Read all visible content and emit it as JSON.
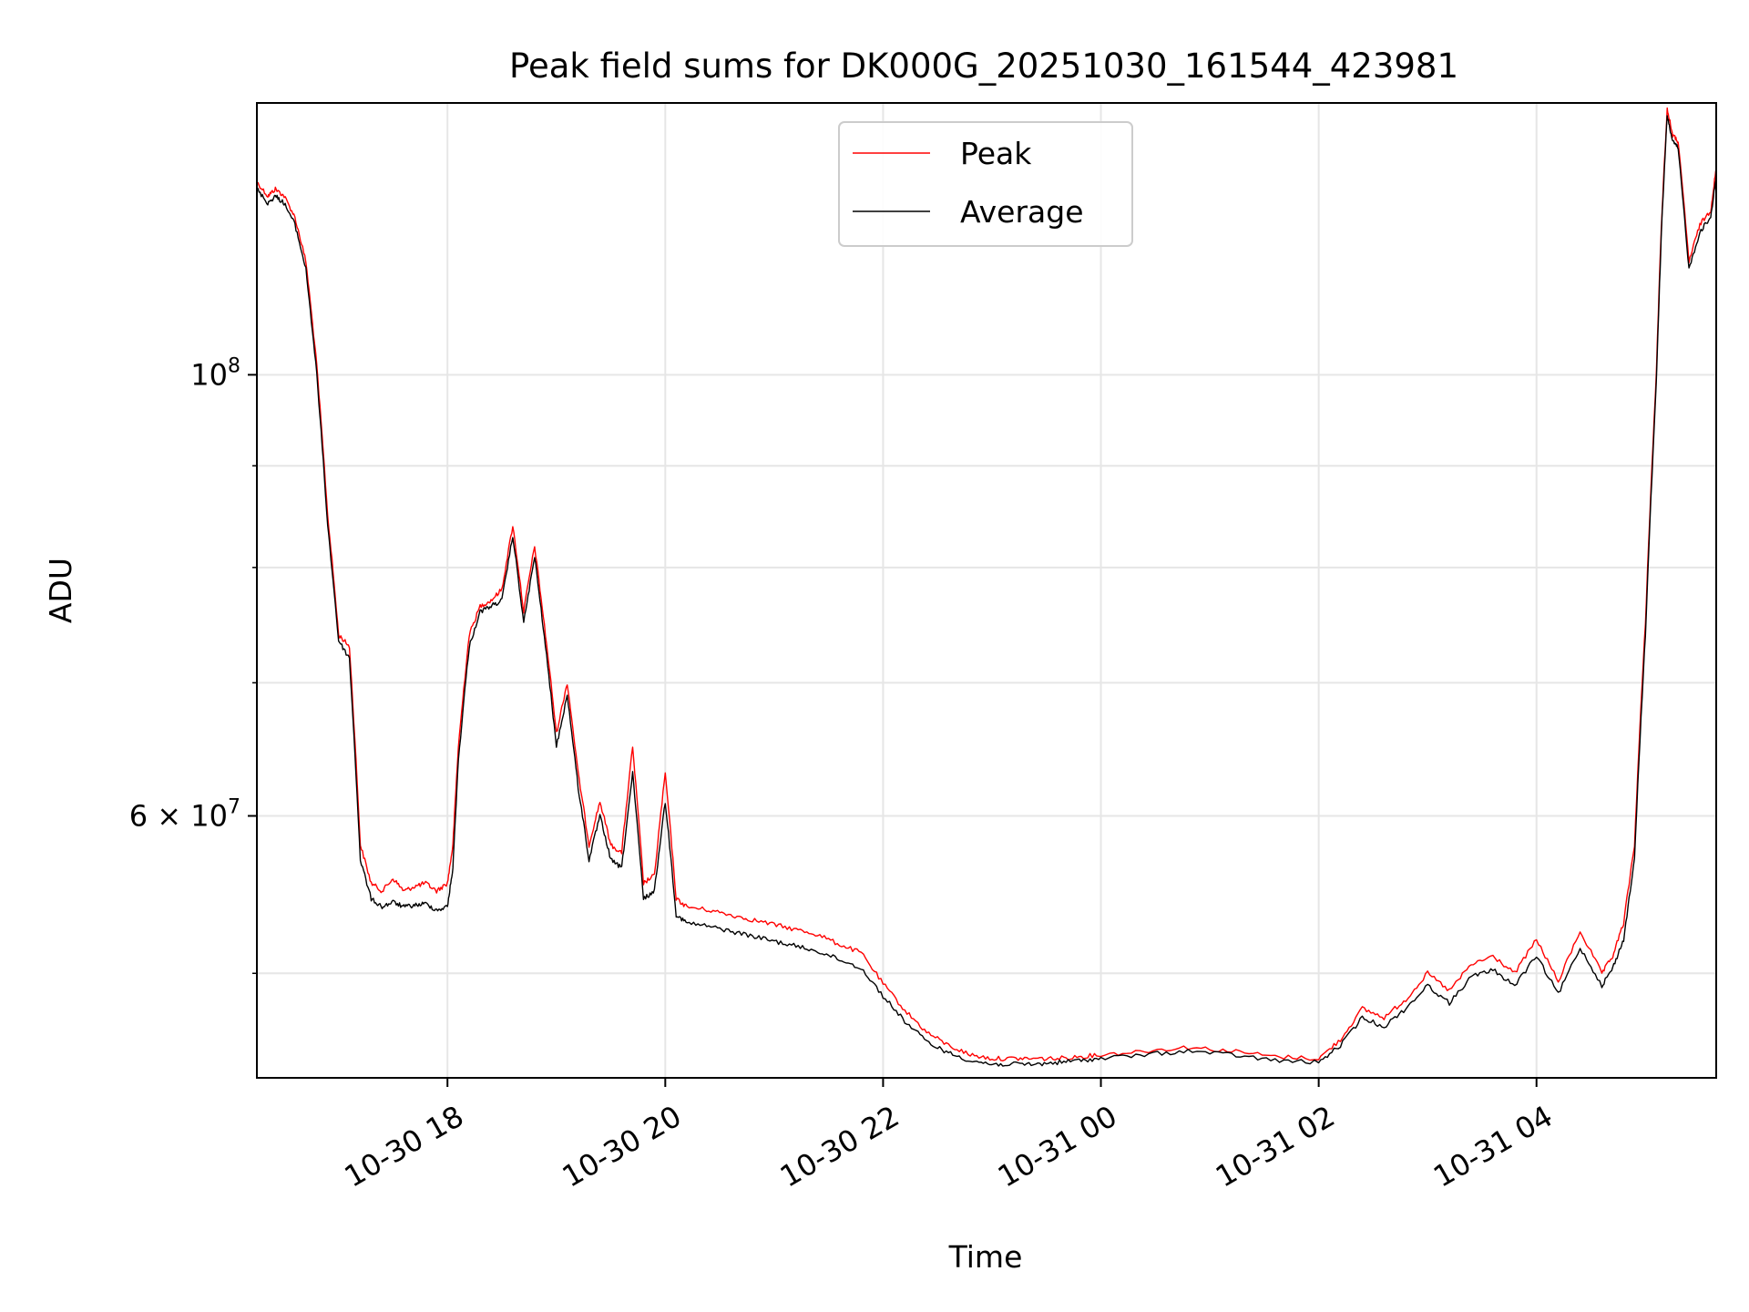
{
  "chart_data": {
    "type": "line",
    "title": "Peak field sums for DK000G_20251030_161544_423981",
    "xlabel": "Time",
    "ylabel": "ADU",
    "yscale": "log",
    "grid": true,
    "legend_position": "top-center",
    "x_unit": "hours since 2025-10-30 00:00",
    "xlim": [
      16.25,
      29.65
    ],
    "ylim": [
      44300000,
      137000000
    ],
    "x_ticks": [
      {
        "value": 18,
        "label": "10-30 18"
      },
      {
        "value": 20,
        "label": "10-30 20"
      },
      {
        "value": 22,
        "label": "10-30 22"
      },
      {
        "value": 24,
        "label": "10-31 00"
      },
      {
        "value": 26,
        "label": "10-31 02"
      },
      {
        "value": 28,
        "label": "10-31 04"
      }
    ],
    "y_major_ticks": [
      {
        "value": 100000000,
        "base": "10",
        "exp": "8",
        "mantissa": ""
      },
      {
        "value": 60000000,
        "base": "10",
        "exp": "7",
        "mantissa": "6 × "
      }
    ],
    "y_minor_ticks": [
      50000000,
      70000000,
      80000000,
      90000000
    ],
    "series": [
      {
        "name": "Peak",
        "color": "#ff0000",
        "x": [
          16.25,
          16.35,
          16.42,
          16.5,
          16.6,
          16.7,
          16.8,
          16.9,
          17.0,
          17.1,
          17.2,
          17.3,
          17.4,
          17.5,
          17.6,
          17.7,
          17.8,
          17.9,
          18.0,
          18.05,
          18.1,
          18.2,
          18.3,
          18.4,
          18.5,
          18.6,
          18.7,
          18.8,
          18.9,
          19.0,
          19.1,
          19.2,
          19.3,
          19.4,
          19.5,
          19.6,
          19.7,
          19.8,
          19.9,
          20.0,
          20.1,
          20.2,
          20.4,
          20.6,
          20.8,
          21.0,
          21.2,
          21.4,
          21.6,
          21.8,
          22.0,
          22.2,
          22.4,
          22.6,
          22.8,
          23.0,
          23.2,
          23.4,
          23.6,
          23.8,
          24.0,
          24.4,
          24.8,
          25.2,
          25.6,
          26.0,
          26.2,
          26.4,
          26.6,
          26.8,
          27.0,
          27.2,
          27.4,
          27.6,
          27.8,
          28.0,
          28.2,
          28.4,
          28.6,
          28.7,
          28.8,
          28.9,
          29.0,
          29.1,
          29.15,
          29.2,
          29.25,
          29.3,
          29.4,
          29.5,
          29.6,
          29.65
        ],
        "y": [
          125000000,
          123000000,
          124000000,
          123000000,
          120000000,
          114000000,
          101000000,
          85000000,
          74000000,
          73000000,
          58000000,
          55500000,
          55000000,
          55800000,
          55000000,
          55300000,
          55500000,
          55000000,
          55500000,
          58000000,
          65000000,
          74000000,
          76500000,
          77000000,
          78000000,
          84000000,
          76000000,
          82000000,
          74000000,
          66000000,
          70000000,
          63000000,
          58000000,
          61000000,
          58000000,
          57500000,
          65000000,
          55500000,
          56000000,
          63000000,
          54500000,
          54000000,
          53800000,
          53500000,
          53200000,
          52900000,
          52600000,
          52300000,
          51700000,
          51200000,
          49400000,
          47900000,
          46700000,
          46000000,
          45500000,
          45300000,
          45300000,
          45300000,
          45300000,
          45400000,
          45500000,
          45700000,
          45900000,
          45700000,
          45400000,
          45300000,
          46300000,
          48000000,
          47500000,
          48500000,
          50000000,
          49000000,
          50500000,
          51000000,
          50000000,
          52000000,
          49500000,
          52500000,
          50000000,
          51000000,
          53000000,
          58000000,
          75000000,
          100000000,
          120000000,
          136000000,
          132000000,
          131000000,
          114000000,
          119000000,
          121000000,
          127000000
        ]
      },
      {
        "name": "Average",
        "color": "#000000",
        "x": [
          16.25,
          16.35,
          16.42,
          16.5,
          16.6,
          16.7,
          16.8,
          16.9,
          17.0,
          17.1,
          17.2,
          17.3,
          17.4,
          17.5,
          17.6,
          17.7,
          17.8,
          17.9,
          18.0,
          18.05,
          18.1,
          18.2,
          18.3,
          18.4,
          18.5,
          18.6,
          18.7,
          18.8,
          18.9,
          19.0,
          19.1,
          19.2,
          19.3,
          19.4,
          19.5,
          19.6,
          19.7,
          19.8,
          19.9,
          20.0,
          20.1,
          20.2,
          20.4,
          20.6,
          20.8,
          21.0,
          21.2,
          21.4,
          21.6,
          21.8,
          22.0,
          22.2,
          22.4,
          22.6,
          22.8,
          23.0,
          23.2,
          23.4,
          23.6,
          23.8,
          24.0,
          24.4,
          24.8,
          25.2,
          25.6,
          26.0,
          26.2,
          26.4,
          26.6,
          26.8,
          27.0,
          27.2,
          27.4,
          27.6,
          27.8,
          28.0,
          28.2,
          28.4,
          28.6,
          28.7,
          28.8,
          28.9,
          29.0,
          29.1,
          29.15,
          29.2,
          29.25,
          29.3,
          29.4,
          29.5,
          29.6,
          29.65
        ],
        "y": [
          124000000,
          122000000,
          123000000,
          122000000,
          119000000,
          113000000,
          100000000,
          84000000,
          73500000,
          72000000,
          57000000,
          54500000,
          54000000,
          54300000,
          54000000,
          54100000,
          54200000,
          53800000,
          54000000,
          56500000,
          64000000,
          73000000,
          76000000,
          76500000,
          77000000,
          83000000,
          75000000,
          81000000,
          73000000,
          65000000,
          69000000,
          62000000,
          57000000,
          60000000,
          57000000,
          56500000,
          63000000,
          54500000,
          55000000,
          61000000,
          53500000,
          53000000,
          52800000,
          52500000,
          52200000,
          51900000,
          51600000,
          51300000,
          50800000,
          50300000,
          48700000,
          47300000,
          46200000,
          45600000,
          45200000,
          45000000,
          45000000,
          45000000,
          45100000,
          45200000,
          45300000,
          45500000,
          45700000,
          45500000,
          45200000,
          45100000,
          46000000,
          47500000,
          47000000,
          48000000,
          49300000,
          48300000,
          49800000,
          50200000,
          49300000,
          51000000,
          48800000,
          51500000,
          49300000,
          50300000,
          52000000,
          57000000,
          74000000,
          99000000,
          119000000,
          135000000,
          131000000,
          130000000,
          113000000,
          118000000,
          120000000,
          126000000
        ]
      }
    ]
  }
}
